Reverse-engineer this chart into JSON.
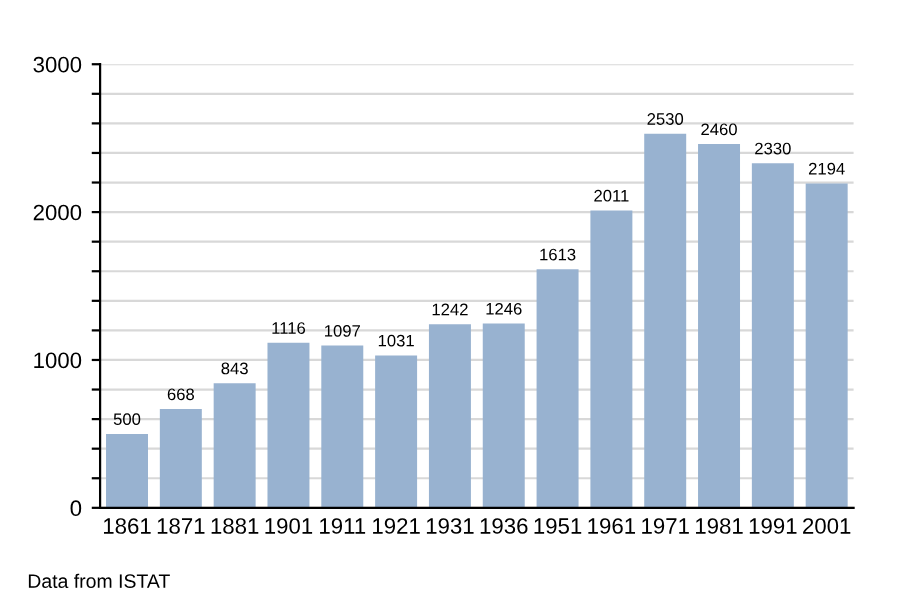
{
  "chart_data": {
    "type": "bar",
    "categories": [
      "1861",
      "1871",
      "1881",
      "1901",
      "1911",
      "1921",
      "1931",
      "1936",
      "1951",
      "1961",
      "1971",
      "1981",
      "1991",
      "2001"
    ],
    "values": [
      500,
      668,
      843,
      1116,
      1097,
      1031,
      1242,
      1246,
      1613,
      2011,
      2530,
      2460,
      2330,
      2194
    ],
    "color": "#98b2d0",
    "data_labels": true,
    "ylim": [
      0,
      3000
    ],
    "yticks": [
      0,
      {
        "value": 200,
        "label": null
      },
      {
        "value": 400,
        "label": null
      },
      {
        "value": 600,
        "label": null
      },
      {
        "value": 800,
        "label": null
      },
      1000,
      {
        "value": 1200,
        "label": null
      },
      {
        "value": 1400,
        "label": null
      },
      {
        "value": 1600,
        "label": null
      },
      {
        "value": 1800,
        "label": null
      },
      2000,
      {
        "value": 2200,
        "label": null
      },
      {
        "value": 2400,
        "label": null
      },
      {
        "value": 2600,
        "label": null
      },
      {
        "value": 2800,
        "label": null
      },
      3000
    ],
    "grid": "y",
    "annotations": [
      "Data from ISTAT"
    ]
  }
}
